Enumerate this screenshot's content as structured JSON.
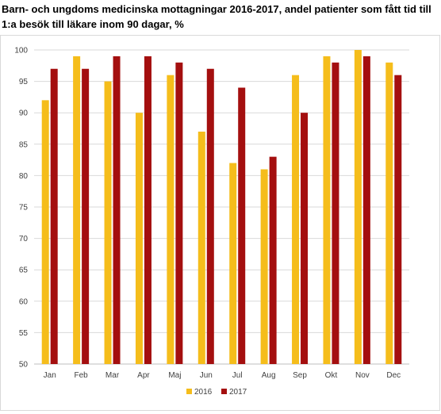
{
  "title": "Barn- och ungdoms medicinska mottagningar 2016-2017, andel patienter som fått tid till 1:a besök till läkare inom 90 dagar, %",
  "chart_data": {
    "type": "bar",
    "title": "Barn- och ungdoms medicinska mottagningar 2016-2017, andel patienter som fått tid till 1:a besök till läkare inom 90 dagar, %",
    "categories": [
      "Jan",
      "Feb",
      "Mar",
      "Apr",
      "Maj",
      "Jun",
      "Jul",
      "Aug",
      "Sep",
      "Okt",
      "Nov",
      "Dec"
    ],
    "series": [
      {
        "name": "2016",
        "color": "#f5bd1b",
        "values": [
          92,
          99,
          95,
          90,
          96,
          87,
          82,
          81,
          96,
          99,
          100,
          98
        ]
      },
      {
        "name": "2017",
        "color": "#a40f0f",
        "values": [
          97,
          97,
          99,
          99,
          98,
          97,
          94,
          83,
          90,
          98,
          99,
          96
        ]
      }
    ],
    "ylim": [
      50,
      100
    ],
    "yticks": [
      "50",
      "55",
      "60",
      "65",
      "70",
      "75",
      "80",
      "85",
      "90",
      "95",
      "100"
    ],
    "grid": true,
    "legend": "bottom"
  }
}
